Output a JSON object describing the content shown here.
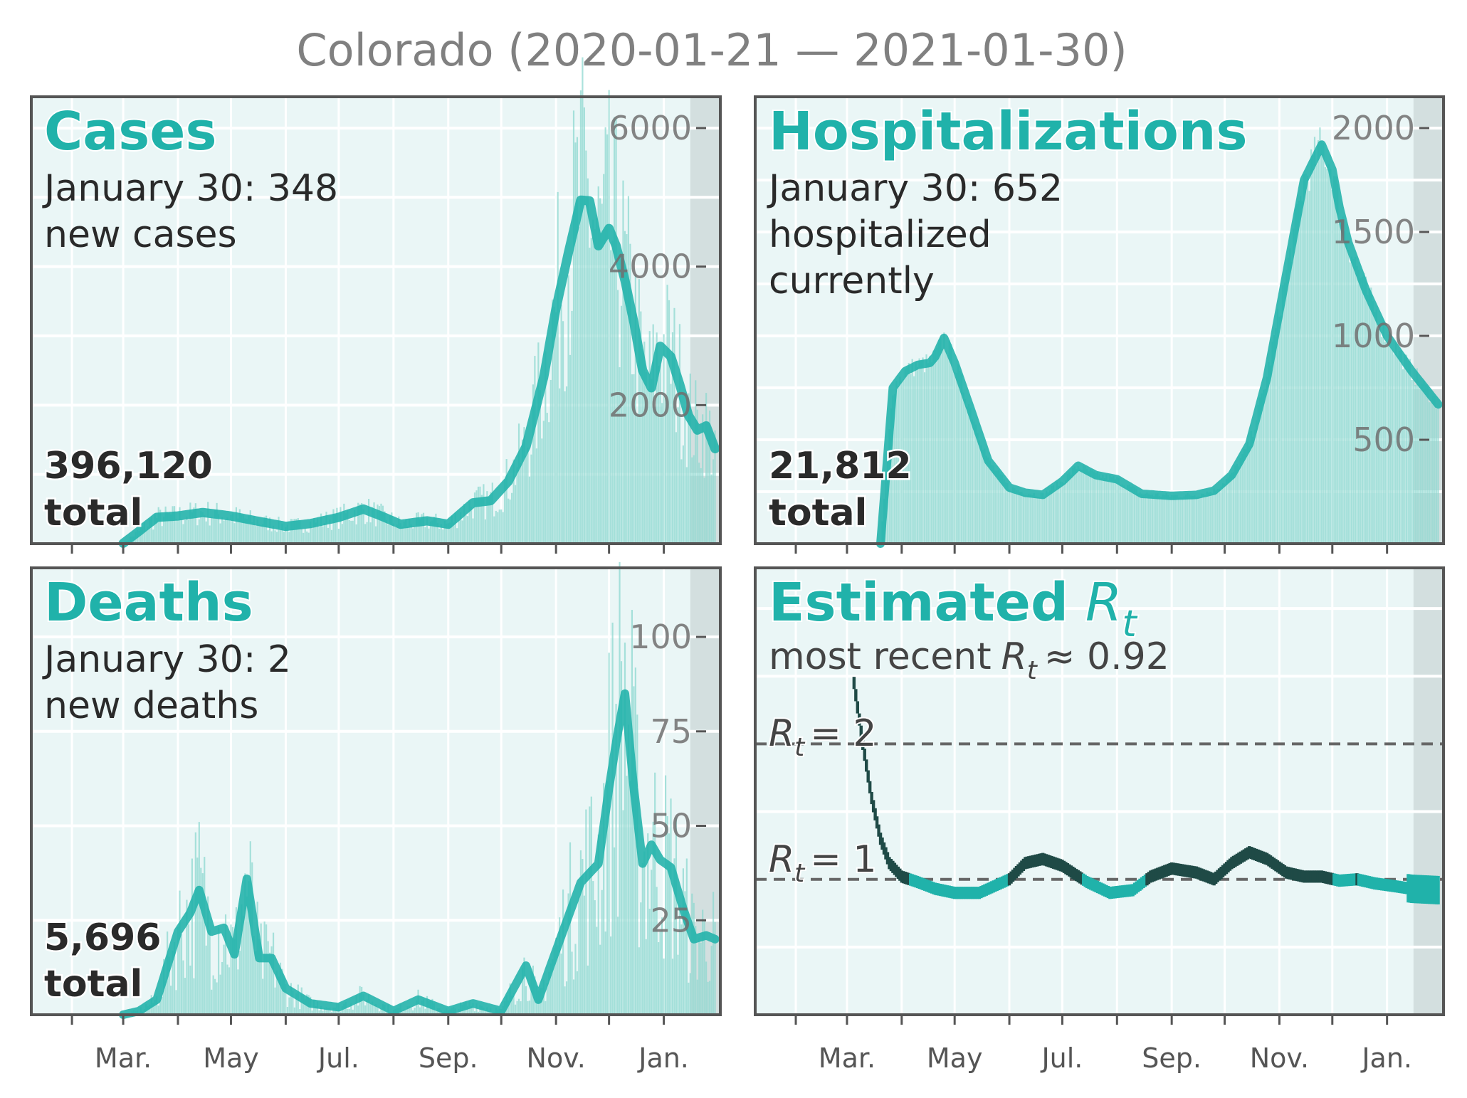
{
  "title": "Colorado (2020-01-21 — 2021-01-30)",
  "colors": {
    "accent": "#20b2aa",
    "bars": "#8fd9d1",
    "panel_bg": "#eaf6f6",
    "shade": "#d3dfdf",
    "grid": "#ffffff",
    "frame": "#555555",
    "text_dark": "#2a2a2a",
    "tick_text": "#707070",
    "rt_high": "#1f4a46",
    "dash": "#666666"
  },
  "month_labels": [
    "Mar.",
    "May",
    "Jul.",
    "Sep.",
    "Nov.",
    "Jan."
  ],
  "panels": {
    "cases": {
      "heading": "Cases",
      "line1": "January 30: 348",
      "line2": "new cases",
      "total_value": "396,120",
      "total_label": "total"
    },
    "hosp": {
      "heading": "Hospitalizations",
      "line1": "January 30: 652",
      "line2": "hospitalized",
      "line3": "currently",
      "total_value": "21,812",
      "total_label": "total"
    },
    "deaths": {
      "heading": "Deaths",
      "line1": "January 30: 2",
      "line2": "new deaths",
      "total_value": "5,696",
      "total_label": "total"
    },
    "rt": {
      "heading": "Estimated",
      "heading_symbol": "R",
      "heading_sub": "t",
      "recent_prefix": "most recent",
      "recent_symbol": "R",
      "recent_sub": "t",
      "recent_suffix": "≈ 0.92",
      "ref2_symbol": "R",
      "ref2_sub": "t",
      "ref2_text": "= 2",
      "ref1_symbol": "R",
      "ref1_sub": "t",
      "ref1_text": "= 1"
    }
  },
  "chart_data": [
    {
      "type": "line",
      "name": "cases",
      "x_range": [
        "2020-01-21",
        "2021-01-30"
      ],
      "ylim": [
        0,
        6000
      ],
      "yticks": [
        2000,
        4000,
        6000
      ],
      "tick_labels": [
        "2000",
        "4000",
        "6000"
      ],
      "x": [
        "2020-03-01",
        "2020-03-10",
        "2020-03-20",
        "2020-04-01",
        "2020-04-15",
        "2020-05-01",
        "2020-05-15",
        "2020-06-01",
        "2020-06-15",
        "2020-07-01",
        "2020-07-15",
        "2020-07-25",
        "2020-08-05",
        "2020-08-20",
        "2020-09-01",
        "2020-09-15",
        "2020-09-25",
        "2020-10-05",
        "2020-10-15",
        "2020-10-25",
        "2020-11-01",
        "2020-11-08",
        "2020-11-15",
        "2020-11-20",
        "2020-11-25",
        "2020-12-01",
        "2020-12-05",
        "2020-12-10",
        "2020-12-15",
        "2020-12-20",
        "2020-12-25",
        "2020-12-30",
        "2021-01-05",
        "2021-01-10",
        "2021-01-15",
        "2021-01-20",
        "2021-01-25",
        "2021-01-30"
      ],
      "values": [
        5,
        180,
        380,
        400,
        450,
        400,
        330,
        250,
        290,
        380,
        500,
        400,
        280,
        330,
        280,
        590,
        620,
        900,
        1400,
        2400,
        3400,
        4200,
        4960,
        4950,
        4300,
        4550,
        4300,
        3800,
        3200,
        2500,
        2250,
        2850,
        2700,
        2300,
        1850,
        1640,
        1700,
        1370
      ]
    },
    {
      "type": "area",
      "name": "hospitalizations",
      "x_range": [
        "2020-01-21",
        "2021-01-30"
      ],
      "ylim": [
        0,
        2000
      ],
      "yticks": [
        500,
        1000,
        1500,
        2000
      ],
      "tick_labels": [
        "500",
        "1000",
        "1500",
        "2000"
      ],
      "x": [
        "2020-03-20",
        "2020-03-27",
        "2020-04-03",
        "2020-04-10",
        "2020-04-17",
        "2020-04-20",
        "2020-04-25",
        "2020-05-01",
        "2020-05-10",
        "2020-05-20",
        "2020-06-01",
        "2020-06-10",
        "2020-06-20",
        "2020-07-01",
        "2020-07-10",
        "2020-07-20",
        "2020-08-01",
        "2020-08-15",
        "2020-09-01",
        "2020-09-15",
        "2020-09-25",
        "2020-10-05",
        "2020-10-15",
        "2020-10-25",
        "2020-11-05",
        "2020-11-15",
        "2020-11-25",
        "2020-12-01",
        "2020-12-05",
        "2020-12-10",
        "2020-12-20",
        "2021-01-01",
        "2021-01-15",
        "2021-01-30"
      ],
      "values": [
        0,
        750,
        830,
        860,
        870,
        900,
        990,
        870,
        650,
        400,
        270,
        245,
        235,
        300,
        375,
        330,
        310,
        240,
        230,
        235,
        255,
        330,
        480,
        800,
        1300,
        1750,
        1920,
        1800,
        1620,
        1450,
        1220,
        1000,
        830,
        670
      ]
    },
    {
      "type": "line",
      "name": "deaths",
      "x_range": [
        "2020-01-21",
        "2021-01-30"
      ],
      "ylim": [
        0,
        110
      ],
      "yticks": [
        25,
        50,
        75,
        100
      ],
      "tick_labels": [
        "25",
        "50",
        "75",
        "100"
      ],
      "x": [
        "2020-03-01",
        "2020-03-10",
        "2020-03-20",
        "2020-04-01",
        "2020-04-08",
        "2020-04-13",
        "2020-04-20",
        "2020-04-27",
        "2020-05-03",
        "2020-05-10",
        "2020-05-17",
        "2020-05-24",
        "2020-06-01",
        "2020-06-15",
        "2020-07-01",
        "2020-07-15",
        "2020-08-01",
        "2020-08-15",
        "2020-09-01",
        "2020-09-15",
        "2020-10-01",
        "2020-10-15",
        "2020-10-22",
        "2020-11-01",
        "2020-11-15",
        "2020-11-25",
        "2020-12-01",
        "2020-12-05",
        "2020-12-10",
        "2020-12-15",
        "2020-12-20",
        "2020-12-25",
        "2020-12-30",
        "2021-01-05",
        "2021-01-12",
        "2021-01-18",
        "2021-01-25",
        "2021-01-30"
      ],
      "values": [
        0,
        1,
        4,
        22,
        27,
        33,
        22,
        23,
        16,
        36,
        15,
        15,
        7,
        3,
        2,
        5,
        1,
        4,
        1,
        3,
        1,
        13,
        4,
        17,
        35,
        40,
        60,
        72,
        85,
        60,
        40,
        45,
        41,
        39,
        28,
        20,
        21,
        20
      ]
    },
    {
      "type": "line",
      "name": "estimated_rt",
      "x_range": [
        "2020-01-21",
        "2021-01-30"
      ],
      "ylim": [
        0,
        3
      ],
      "reference_lines": [
        1,
        2
      ],
      "x": [
        "2020-03-05",
        "2020-03-10",
        "2020-03-15",
        "2020-03-20",
        "2020-03-25",
        "2020-04-01",
        "2020-04-10",
        "2020-04-20",
        "2020-05-01",
        "2020-05-15",
        "2020-06-01",
        "2020-06-10",
        "2020-06-20",
        "2020-07-01",
        "2020-07-15",
        "2020-07-28",
        "2020-08-10",
        "2020-08-20",
        "2020-09-01",
        "2020-09-15",
        "2020-09-25",
        "2020-10-05",
        "2020-10-15",
        "2020-10-25",
        "2020-11-05",
        "2020-11-15",
        "2020-11-25",
        "2020-12-05",
        "2020-12-15",
        "2020-12-25",
        "2021-01-05",
        "2021-01-15",
        "2021-01-30"
      ],
      "values": [
        2.45,
        2.0,
        1.6,
        1.3,
        1.12,
        1.02,
        0.98,
        0.93,
        0.9,
        0.9,
        1.0,
        1.12,
        1.15,
        1.1,
        0.98,
        0.9,
        0.92,
        1.02,
        1.08,
        1.05,
        1.0,
        1.12,
        1.2,
        1.15,
        1.05,
        1.02,
        1.02,
        0.99,
        1.0,
        0.97,
        0.95,
        0.93,
        0.92
      ]
    }
  ]
}
